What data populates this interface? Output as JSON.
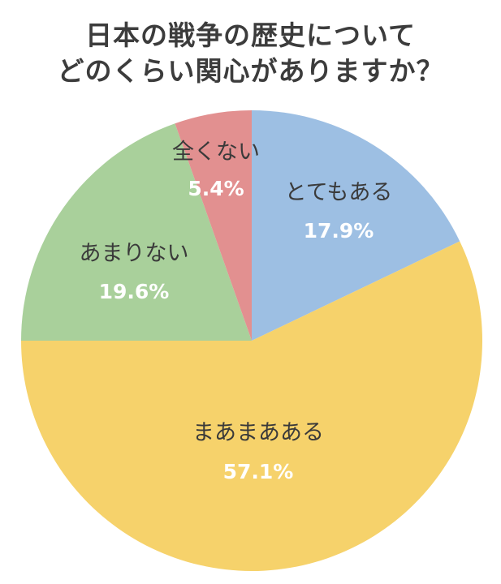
{
  "chart_data": {
    "type": "pie",
    "title_lines": [
      "日本の戦争の歴史について",
      "どのくらい関心がありますか？"
    ],
    "slices": [
      {
        "label": "とてもある",
        "value": 17.9,
        "value_label": "17.9%",
        "color": "#9dbfe3"
      },
      {
        "label": "まあまあある",
        "value": 57.1,
        "value_label": "57.1%",
        "color": "#f6d26b"
      },
      {
        "label": "あまりない",
        "value": 19.6,
        "value_label": "19.6%",
        "color": "#a9d09b"
      },
      {
        "label": "全くない",
        "value": 5.4,
        "value_label": "5.4%",
        "color": "#e29090"
      }
    ],
    "start": "12 o'clock",
    "direction": "clockwise",
    "legend": "none"
  }
}
